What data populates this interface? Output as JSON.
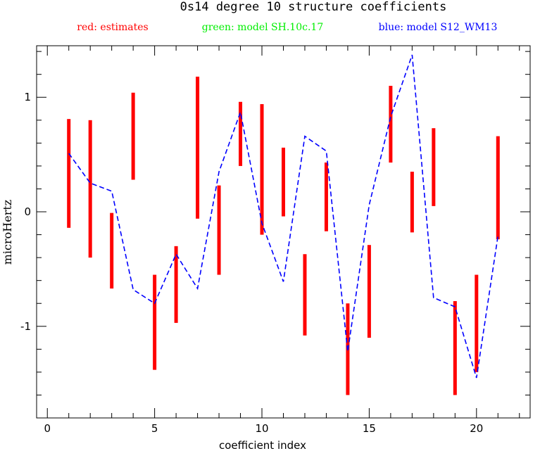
{
  "chart_data": {
    "type": "line",
    "title": "0s14 degree 10 structure coefficients",
    "xlabel": "coefficient index",
    "ylabel": "microHertz",
    "xlim": [
      -0.5,
      22.5
    ],
    "ylim": [
      -1.8,
      1.45
    ],
    "x_ticks": [
      0,
      5,
      10,
      15,
      20
    ],
    "y_ticks": [
      -1,
      0,
      1
    ],
    "legend": [
      {
        "label": "red: estimates",
        "color": "#ff0000"
      },
      {
        "label": "green: model SH.10c.17",
        "color": "#00ee00"
      },
      {
        "label": "blue: model S12_WM13",
        "color": "#0000ff"
      }
    ],
    "estimates": [
      {
        "x": 1,
        "low": -0.14,
        "high": 0.81
      },
      {
        "x": 2,
        "low": -0.4,
        "high": 0.8
      },
      {
        "x": 3,
        "low": -0.67,
        "high": -0.01
      },
      {
        "x": 4,
        "low": 0.28,
        "high": 1.04
      },
      {
        "x": 5,
        "low": -1.38,
        "high": -0.55
      },
      {
        "x": 6,
        "low": -0.97,
        "high": -0.3
      },
      {
        "x": 7,
        "low": -0.06,
        "high": 1.18
      },
      {
        "x": 8,
        "low": -0.55,
        "high": 0.23
      },
      {
        "x": 9,
        "low": 0.4,
        "high": 0.96
      },
      {
        "x": 10,
        "low": -0.2,
        "high": 0.94
      },
      {
        "x": 11,
        "low": -0.04,
        "high": 0.56
      },
      {
        "x": 12,
        "low": -1.08,
        "high": -0.37
      },
      {
        "x": 13,
        "low": -0.17,
        "high": 0.43
      },
      {
        "x": 14,
        "low": -1.6,
        "high": -0.8
      },
      {
        "x": 15,
        "low": -1.1,
        "high": -0.29
      },
      {
        "x": 16,
        "low": 0.43,
        "high": 1.1
      },
      {
        "x": 17,
        "low": -0.18,
        "high": 0.35
      },
      {
        "x": 18,
        "low": 0.05,
        "high": 0.73
      },
      {
        "x": 19,
        "low": -1.6,
        "high": -0.78
      },
      {
        "x": 20,
        "low": -1.4,
        "high": -0.55
      },
      {
        "x": 21,
        "low": -0.24,
        "high": 0.66
      }
    ],
    "series": [
      {
        "color": "#0000ff",
        "x": [
          1,
          2,
          3,
          4,
          5,
          6,
          7,
          8,
          9,
          10,
          11,
          12,
          13,
          14,
          15,
          16,
          17,
          18,
          19,
          20,
          21
        ],
        "values": [
          0.51,
          0.25,
          0.18,
          -0.68,
          -0.8,
          -0.37,
          -0.67,
          0.35,
          0.87,
          -0.1,
          -0.61,
          0.66,
          0.53,
          -1.22,
          0.06,
          0.83,
          1.37,
          -0.75,
          -0.83,
          -1.45,
          -0.21
        ]
      }
    ]
  }
}
